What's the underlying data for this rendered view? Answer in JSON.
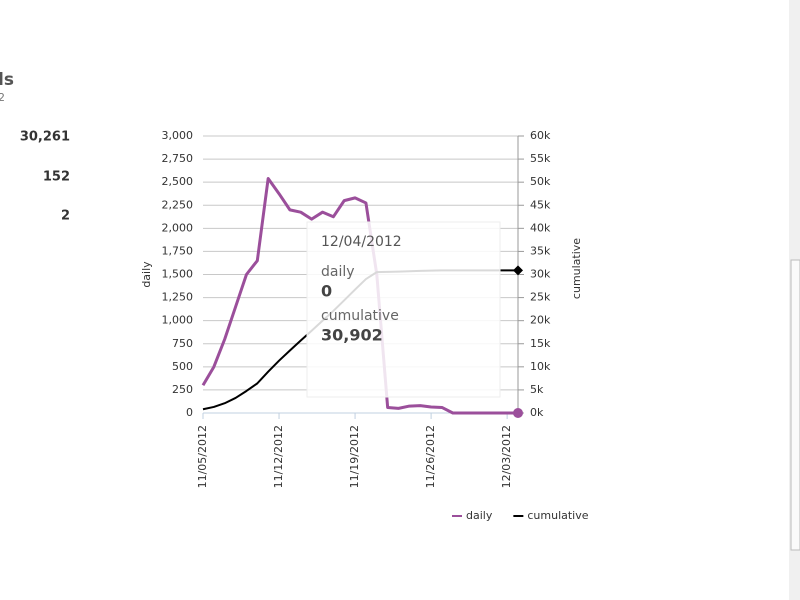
{
  "header": {
    "title": "ls",
    "subtitle": "2"
  },
  "stats": [
    "30,261",
    "152",
    "2"
  ],
  "tooltip": {
    "date": "12/04/2012",
    "items": [
      {
        "name": "daily",
        "value": "0"
      },
      {
        "name": "cumulative",
        "value": "30,902"
      }
    ]
  },
  "chart_data": {
    "type": "line",
    "categories": [
      "11/05/2012",
      null,
      null,
      null,
      null,
      null,
      null,
      "11/12/2012",
      null,
      null,
      null,
      null,
      null,
      null,
      "11/19/2012",
      null,
      null,
      null,
      null,
      null,
      null,
      "11/26/2012",
      null,
      null,
      null,
      null,
      null,
      null,
      "12/03/2012",
      null
    ],
    "y_label": "daily",
    "y2_label": "cumulative",
    "series": [
      {
        "name": "daily",
        "color": "#9b4f9b",
        "values": [
          300,
          500,
          800,
          1150,
          1500,
          1650,
          2540,
          2375,
          2200,
          2175,
          2100,
          2175,
          2125,
          2300,
          2330,
          2275,
          1500,
          60,
          50,
          75,
          80,
          65,
          60,
          0,
          0,
          0,
          0,
          0,
          0,
          0
        ]
      },
      {
        "name": "cumulative",
        "color": "#000000",
        "axis": "y2",
        "values": [
          817,
          1317,
          2117,
          3267,
          4767,
          6417,
          8957,
          11332,
          13532,
          15707,
          17807,
          19982,
          22107,
          24407,
          26737,
          29012,
          30512,
          30572,
          30622,
          30697,
          30777,
          30842,
          30902,
          30902,
          30902,
          30902,
          30902,
          30902,
          30902,
          30902
        ]
      }
    ],
    "ylim": [
      0,
      3000
    ],
    "yticks": [
      0,
      250,
      500,
      750,
      {
        "value": 1000,
        "label": "1,000"
      },
      {
        "value": 1250,
        "label": "1,250"
      },
      {
        "value": 1500,
        "label": "1,500"
      },
      {
        "value": 1750,
        "label": "1,750"
      },
      {
        "value": 2000,
        "label": "2,000"
      },
      {
        "value": 2250,
        "label": "2,250"
      },
      {
        "value": 2500,
        "label": "2,500"
      },
      {
        "value": 2750,
        "label": "2,750"
      },
      {
        "value": 3000,
        "label": "3,000"
      }
    ],
    "y2lim": [
      0,
      60000
    ],
    "y2ticks": [
      {
        "value": 0,
        "label": "0k"
      },
      {
        "value": 5000,
        "label": "5k"
      },
      {
        "value": 10000,
        "label": "10k"
      },
      {
        "value": 15000,
        "label": "15k"
      },
      {
        "value": 20000,
        "label": "20k"
      },
      {
        "value": 25000,
        "label": "25k"
      },
      {
        "value": 30000,
        "label": "30k"
      },
      {
        "value": 35000,
        "label": "35k"
      },
      {
        "value": 40000,
        "label": "40k"
      },
      {
        "value": 45000,
        "label": "45k"
      },
      {
        "value": 50000,
        "label": "50k"
      },
      {
        "value": 55000,
        "label": "55k"
      },
      {
        "value": 60000,
        "label": "60k"
      }
    ],
    "grid": true,
    "legend": "bottom"
  }
}
